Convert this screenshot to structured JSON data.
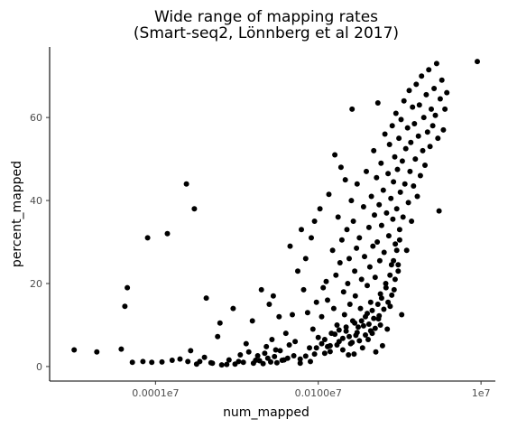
{
  "chart_data": {
    "type": "scatter",
    "title_lines": [
      "Wide range of mapping rates",
      "(Smart-seq2, Lönnberg et al 2017)"
    ],
    "xlabel": "num_mapped",
    "ylabel": "percent_mapped",
    "x_scale": "log10",
    "xlim": [
      50,
      15000000
    ],
    "ylim": [
      -3.5,
      77
    ],
    "x_ticks": [
      {
        "value": 1000,
        "label": "0.0001e7"
      },
      {
        "value": 100000,
        "label": "0.0100e7"
      },
      {
        "value": 10000000,
        "label": "1e7"
      }
    ],
    "y_ticks": [
      {
        "value": 0,
        "label": "0"
      },
      {
        "value": 20,
        "label": "20"
      },
      {
        "value": 40,
        "label": "40"
      },
      {
        "value": 60,
        "label": "60"
      }
    ],
    "grid": false,
    "legend": "none",
    "point_color": "#000000",
    "points": [
      [
        100,
        4.0
      ],
      [
        190,
        3.5
      ],
      [
        380,
        4.2
      ],
      [
        420,
        14.5
      ],
      [
        450,
        19.0
      ],
      [
        520,
        1.0
      ],
      [
        700,
        1.2
      ],
      [
        800,
        31.0
      ],
      [
        900,
        1.0
      ],
      [
        1200,
        1.1
      ],
      [
        1400,
        32.0
      ],
      [
        1600,
        1.5
      ],
      [
        2000,
        1.8
      ],
      [
        2400,
        44.0
      ],
      [
        2700,
        3.8
      ],
      [
        3000,
        38.0
      ],
      [
        3500,
        1.2
      ],
      [
        4200,
        16.5
      ],
      [
        5000,
        0.8
      ],
      [
        5800,
        7.2
      ],
      [
        6200,
        10.5
      ],
      [
        7500,
        0.5
      ],
      [
        9000,
        14.0
      ],
      [
        10500,
        1.2
      ],
      [
        13000,
        5.5
      ],
      [
        15500,
        11.0
      ],
      [
        17000,
        1.5
      ],
      [
        20000,
        18.5
      ],
      [
        22000,
        3.2
      ],
      [
        25000,
        15.0
      ],
      [
        28000,
        17.0
      ],
      [
        30000,
        4.0
      ],
      [
        33000,
        12.0
      ],
      [
        36000,
        1.5
      ],
      [
        40000,
        8.0
      ],
      [
        42000,
        2.0
      ],
      [
        45000,
        29.0
      ],
      [
        48000,
        12.5
      ],
      [
        52000,
        6.0
      ],
      [
        56000,
        23.0
      ],
      [
        60000,
        0.8
      ],
      [
        62000,
        33.0
      ],
      [
        66000,
        18.5
      ],
      [
        70000,
        26.0
      ],
      [
        74000,
        13.0
      ],
      [
        78000,
        4.5
      ],
      [
        82000,
        31.0
      ],
      [
        86000,
        9.0
      ],
      [
        90000,
        35.0
      ],
      [
        95000,
        15.5
      ],
      [
        100000,
        7.0
      ],
      [
        105000,
        38.0
      ],
      [
        110000,
        12.0
      ],
      [
        115000,
        19.0
      ],
      [
        120000,
        3.2
      ],
      [
        125000,
        20.5
      ],
      [
        130000,
        16.0
      ],
      [
        135000,
        41.5
      ],
      [
        140000,
        5.0
      ],
      [
        145000,
        8.0
      ],
      [
        150000,
        28.0
      ],
      [
        155000,
        14.0
      ],
      [
        160000,
        51.0
      ],
      [
        165000,
        22.0
      ],
      [
        170000,
        10.0
      ],
      [
        175000,
        36.0
      ],
      [
        180000,
        6.0
      ],
      [
        185000,
        25.0
      ],
      [
        190000,
        48.0
      ],
      [
        195000,
        30.5
      ],
      [
        200000,
        4.0
      ],
      [
        205000,
        18.0
      ],
      [
        210000,
        12.5
      ],
      [
        215000,
        45.0
      ],
      [
        220000,
        8.5
      ],
      [
        225000,
        33.0
      ],
      [
        230000,
        20.0
      ],
      [
        235000,
        2.8
      ],
      [
        240000,
        26.0
      ],
      [
        245000,
        15.0
      ],
      [
        250000,
        5.5
      ],
      [
        255000,
        40.0
      ],
      [
        260000,
        62.0
      ],
      [
        265000,
        11.0
      ],
      [
        270000,
        35.0
      ],
      [
        275000,
        3.0
      ],
      [
        280000,
        23.0
      ],
      [
        285000,
        17.0
      ],
      [
        290000,
        7.5
      ],
      [
        295000,
        28.5
      ],
      [
        300000,
        44.0
      ],
      [
        310000,
        9.5
      ],
      [
        320000,
        31.0
      ],
      [
        330000,
        14.0
      ],
      [
        340000,
        21.0
      ],
      [
        350000,
        4.5
      ],
      [
        360000,
        38.5
      ],
      [
        370000,
        26.5
      ],
      [
        380000,
        12.0
      ],
      [
        390000,
        47.0
      ],
      [
        400000,
        19.5
      ],
      [
        410000,
        6.5
      ],
      [
        420000,
        33.5
      ],
      [
        430000,
        24.0
      ],
      [
        440000,
        15.5
      ],
      [
        450000,
        41.0
      ],
      [
        460000,
        8.0
      ],
      [
        470000,
        29.0
      ],
      [
        480000,
        52.0
      ],
      [
        490000,
        36.5
      ],
      [
        500000,
        21.5
      ],
      [
        510000,
        3.5
      ],
      [
        520000,
        45.5
      ],
      [
        530000,
        30.0
      ],
      [
        540000,
        63.5
      ],
      [
        550000,
        11.5
      ],
      [
        560000,
        39.0
      ],
      [
        570000,
        25.5
      ],
      [
        580000,
        17.5
      ],
      [
        590000,
        49.0
      ],
      [
        600000,
        34.0
      ],
      [
        615000,
        5.0
      ],
      [
        630000,
        42.5
      ],
      [
        645000,
        27.5
      ],
      [
        660000,
        56.0
      ],
      [
        675000,
        20.0
      ],
      [
        690000,
        37.0
      ],
      [
        705000,
        9.0
      ],
      [
        720000,
        46.5
      ],
      [
        735000,
        31.5
      ],
      [
        750000,
        53.5
      ],
      [
        765000,
        14.5
      ],
      [
        780000,
        40.5
      ],
      [
        795000,
        24.5
      ],
      [
        810000,
        58.0
      ],
      [
        825000,
        35.5
      ],
      [
        840000,
        44.5
      ],
      [
        855000,
        18.5
      ],
      [
        870000,
        50.5
      ],
      [
        885000,
        29.5
      ],
      [
        900000,
        61.0
      ],
      [
        920000,
        38.0
      ],
      [
        940000,
        47.5
      ],
      [
        960000,
        23.0
      ],
      [
        980000,
        55.0
      ],
      [
        1000000,
        33.0
      ],
      [
        1020000,
        42.0
      ],
      [
        1040000,
        59.5
      ],
      [
        1060000,
        12.5
      ],
      [
        1080000,
        49.5
      ],
      [
        1100000,
        36.0
      ],
      [
        1130000,
        64.0
      ],
      [
        1160000,
        44.0
      ],
      [
        1190000,
        52.5
      ],
      [
        1220000,
        28.0
      ],
      [
        1250000,
        57.5
      ],
      [
        1280000,
        39.5
      ],
      [
        1310000,
        66.5
      ],
      [
        1340000,
        47.0
      ],
      [
        1370000,
        54.0
      ],
      [
        1400000,
        35.0
      ],
      [
        1440000,
        62.5
      ],
      [
        1480000,
        43.5
      ],
      [
        1520000,
        58.5
      ],
      [
        1560000,
        50.0
      ],
      [
        1600000,
        68.0
      ],
      [
        1650000,
        41.0
      ],
      [
        1700000,
        55.5
      ],
      [
        1750000,
        63.0
      ],
      [
        1800000,
        46.0
      ],
      [
        1860000,
        70.0
      ],
      [
        1920000,
        52.0
      ],
      [
        1980000,
        60.0
      ],
      [
        2050000,
        48.5
      ],
      [
        2120000,
        65.5
      ],
      [
        2200000,
        56.5
      ],
      [
        2280000,
        71.5
      ],
      [
        2360000,
        53.0
      ],
      [
        2450000,
        62.0
      ],
      [
        2550000,
        58.0
      ],
      [
        2650000,
        67.0
      ],
      [
        2750000,
        60.5
      ],
      [
        2850000,
        73.0
      ],
      [
        2950000,
        55.0
      ],
      [
        3050000,
        37.5
      ],
      [
        3150000,
        64.5
      ],
      [
        3300000,
        69.0
      ],
      [
        3450000,
        57.0
      ],
      [
        3600000,
        62.0
      ],
      [
        3800000,
        66.0
      ],
      [
        9000000,
        73.5
      ],
      [
        60000,
        1.8
      ],
      [
        70000,
        2.5
      ],
      [
        80000,
        1.2
      ],
      [
        90000,
        3.0
      ],
      [
        95000,
        4.5
      ],
      [
        110000,
        5.5
      ],
      [
        120000,
        6.5
      ],
      [
        130000,
        4.8
      ],
      [
        140000,
        3.6
      ],
      [
        160000,
        7.8
      ],
      [
        170000,
        5.2
      ],
      [
        180000,
        8.8
      ],
      [
        200000,
        6.8
      ],
      [
        220000,
        9.5
      ],
      [
        240000,
        7.2
      ],
      [
        260000,
        5.8
      ],
      [
        280000,
        10.5
      ],
      [
        300000,
        8.2
      ],
      [
        320000,
        6.2
      ],
      [
        340000,
        11.0
      ],
      [
        360000,
        9.8
      ],
      [
        380000,
        7.6
      ],
      [
        400000,
        12.8
      ],
      [
        420000,
        10.2
      ],
      [
        440000,
        8.6
      ],
      [
        460000,
        13.5
      ],
      [
        480000,
        11.6
      ],
      [
        500000,
        9.2
      ],
      [
        540000,
        15.0
      ],
      [
        560000,
        12.2
      ],
      [
        580000,
        10.0
      ],
      [
        600000,
        16.5
      ],
      [
        640000,
        13.8
      ],
      [
        680000,
        19.0
      ],
      [
        720000,
        15.5
      ],
      [
        760000,
        22.0
      ],
      [
        800000,
        17.2
      ],
      [
        840000,
        25.5
      ],
      [
        880000,
        21.0
      ],
      [
        920000,
        28.0
      ],
      [
        960000,
        24.5
      ],
      [
        1000000,
        30.5
      ],
      [
        2500,
        1.2
      ],
      [
        3200,
        0.6
      ],
      [
        4000,
        2.2
      ],
      [
        4800,
        0.9
      ],
      [
        6500,
        0.4
      ],
      [
        8000,
        1.6
      ],
      [
        9500,
        0.6
      ],
      [
        11000,
        2.8
      ],
      [
        12000,
        1.0
      ],
      [
        14000,
        3.5
      ],
      [
        16000,
        0.8
      ],
      [
        18000,
        2.6
      ],
      [
        19000,
        1.4
      ],
      [
        21000,
        0.7
      ],
      [
        23000,
        4.8
      ],
      [
        24000,
        2.0
      ],
      [
        26000,
        1.1
      ],
      [
        27000,
        6.5
      ],
      [
        29000,
        2.4
      ],
      [
        31000,
        0.9
      ],
      [
        34000,
        3.8
      ],
      [
        38000,
        1.6
      ],
      [
        44000,
        5.2
      ],
      [
        50000,
        2.6
      ]
    ]
  }
}
